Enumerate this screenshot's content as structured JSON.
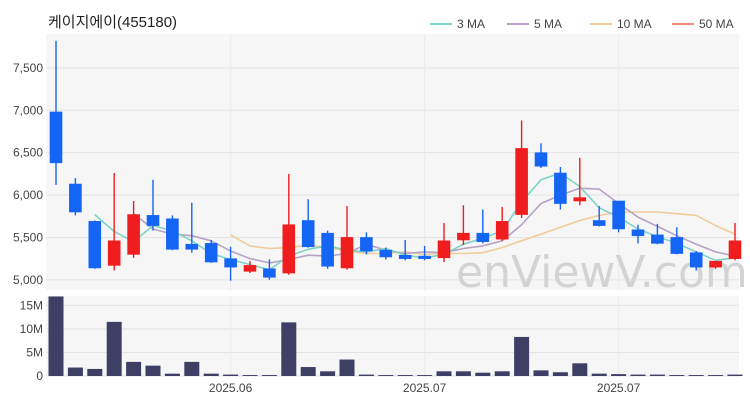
{
  "chart_data": {
    "type": "candlestick",
    "title": "케이지에이(455180)",
    "watermark": "enViewV.com",
    "legend": [
      {
        "label": "3 MA",
        "color": "#7fd3c8"
      },
      {
        "label": "5 MA",
        "color": "#b7a2c6"
      },
      {
        "label": "10 MA",
        "color": "#f0cc9b"
      },
      {
        "label": "50 MA",
        "color": "#f28b7a"
      }
    ],
    "up_color": "#ef1d1d",
    "down_color": "#1565f5",
    "volume_color": "#3f3f66",
    "price_yticks": [
      5000,
      5500,
      6000,
      6500,
      7000,
      7500
    ],
    "price_ytick_labels": [
      "5,000",
      "5,500",
      "6,000",
      "6,500",
      "7,000",
      "7,500"
    ],
    "ylim": [
      4880,
      7900
    ],
    "volume_yticks": [
      0,
      5000000,
      10000000,
      15000000
    ],
    "volume_ytick_labels": [
      "0",
      "5M",
      "10M",
      "15M"
    ],
    "volume_ylim": [
      0,
      17000000
    ],
    "x_tick_labels": [
      {
        "index": 9,
        "label": "2025.06"
      },
      {
        "index": 19,
        "label": "2025.07"
      },
      {
        "index": 29,
        "label": "2025.07"
      }
    ],
    "candles": [
      {
        "o": 6980,
        "h": 7820,
        "l": 6120,
        "c": 6380,
        "v": 16900000
      },
      {
        "o": 6130,
        "h": 6200,
        "l": 5760,
        "c": 5800,
        "v": 1800000
      },
      {
        "o": 5690,
        "h": 5700,
        "l": 5130,
        "c": 5140,
        "v": 1500000
      },
      {
        "o": 5170,
        "h": 6260,
        "l": 5110,
        "c": 5460,
        "v": 11500000
      },
      {
        "o": 5300,
        "h": 5930,
        "l": 5260,
        "c": 5770,
        "v": 3000000
      },
      {
        "o": 5760,
        "h": 6180,
        "l": 5580,
        "c": 5640,
        "v": 2200000
      },
      {
        "o": 5720,
        "h": 5760,
        "l": 5350,
        "c": 5360,
        "v": 500000
      },
      {
        "o": 5420,
        "h": 5910,
        "l": 5320,
        "c": 5360,
        "v": 3000000
      },
      {
        "o": 5430,
        "h": 5470,
        "l": 5200,
        "c": 5210,
        "v": 500000
      },
      {
        "o": 5250,
        "h": 5390,
        "l": 4990,
        "c": 5150,
        "v": 300000
      },
      {
        "o": 5100,
        "h": 5220,
        "l": 5080,
        "c": 5170,
        "v": 200000
      },
      {
        "o": 5130,
        "h": 5240,
        "l": 5000,
        "c": 5030,
        "v": 200000
      },
      {
        "o": 5080,
        "h": 6250,
        "l": 5060,
        "c": 5650,
        "v": 11400000
      },
      {
        "o": 5700,
        "h": 5950,
        "l": 5380,
        "c": 5390,
        "v": 1900000
      },
      {
        "o": 5550,
        "h": 5580,
        "l": 5130,
        "c": 5160,
        "v": 1000000
      },
      {
        "o": 5140,
        "h": 5870,
        "l": 5120,
        "c": 5500,
        "v": 3500000
      },
      {
        "o": 5500,
        "h": 5560,
        "l": 5300,
        "c": 5340,
        "v": 300000
      },
      {
        "o": 5350,
        "h": 5380,
        "l": 5240,
        "c": 5270,
        "v": 200000
      },
      {
        "o": 5290,
        "h": 5470,
        "l": 5230,
        "c": 5250,
        "v": 200000
      },
      {
        "o": 5280,
        "h": 5400,
        "l": 5230,
        "c": 5250,
        "v": 200000
      },
      {
        "o": 5260,
        "h": 5670,
        "l": 5210,
        "c": 5460,
        "v": 1000000
      },
      {
        "o": 5470,
        "h": 5880,
        "l": 5410,
        "c": 5550,
        "v": 1000000
      },
      {
        "o": 5550,
        "h": 5830,
        "l": 5430,
        "c": 5450,
        "v": 700000
      },
      {
        "o": 5480,
        "h": 5860,
        "l": 5460,
        "c": 5690,
        "v": 1000000
      },
      {
        "o": 5770,
        "h": 6880,
        "l": 5730,
        "c": 6550,
        "v": 8300000
      },
      {
        "o": 6500,
        "h": 6610,
        "l": 6320,
        "c": 6340,
        "v": 1200000
      },
      {
        "o": 6260,
        "h": 6330,
        "l": 5830,
        "c": 5900,
        "v": 800000
      },
      {
        "o": 5930,
        "h": 6440,
        "l": 5880,
        "c": 5970,
        "v": 2700000
      },
      {
        "o": 5700,
        "h": 5870,
        "l": 5630,
        "c": 5640,
        "v": 500000
      },
      {
        "o": 5930,
        "h": 5930,
        "l": 5560,
        "c": 5600,
        "v": 400000
      },
      {
        "o": 5590,
        "h": 5650,
        "l": 5430,
        "c": 5520,
        "v": 300000
      },
      {
        "o": 5530,
        "h": 5660,
        "l": 5420,
        "c": 5430,
        "v": 300000
      },
      {
        "o": 5500,
        "h": 5620,
        "l": 5300,
        "c": 5310,
        "v": 200000
      },
      {
        "o": 5320,
        "h": 5340,
        "l": 5110,
        "c": 5150,
        "v": 200000
      },
      {
        "o": 5150,
        "h": 5220,
        "l": 5130,
        "c": 5220,
        "v": 200000
      },
      {
        "o": 5250,
        "h": 5670,
        "l": 5230,
        "c": 5460,
        "v": 300000
      }
    ],
    "ma3": [
      null,
      null,
      5770,
      5570,
      5450,
      5640,
      5580,
      5460,
      5310,
      5240,
      5180,
      5120,
      5280,
      5360,
      5400,
      5350,
      5330,
      5370,
      5290,
      5260,
      5300,
      5420,
      5490,
      5580,
      5920,
      6180,
      6260,
      6100,
      5850,
      5740,
      5600,
      5510,
      5430,
      5330,
      5230,
      5260
    ],
    "ma5": [
      null,
      null,
      null,
      null,
      5780,
      5600,
      5540,
      5520,
      5460,
      5340,
      5250,
      5200,
      5240,
      5290,
      5280,
      5310,
      5420,
      5350,
      5310,
      5330,
      5320,
      5370,
      5400,
      5460,
      5650,
      5900,
      6000,
      6080,
      6070,
      5900,
      5740,
      5630,
      5520,
      5420,
      5330,
      5280
    ],
    "ma10": [
      null,
      null,
      null,
      null,
      null,
      null,
      null,
      null,
      null,
      5530,
      5400,
      5370,
      5380,
      5410,
      5380,
      5340,
      5310,
      5310,
      5330,
      5300,
      5310,
      5310,
      5320,
      5380,
      5460,
      5540,
      5620,
      5700,
      5760,
      5800,
      5800,
      5800,
      5780,
      5760,
      5640,
      5540
    ],
    "ma50": []
  }
}
